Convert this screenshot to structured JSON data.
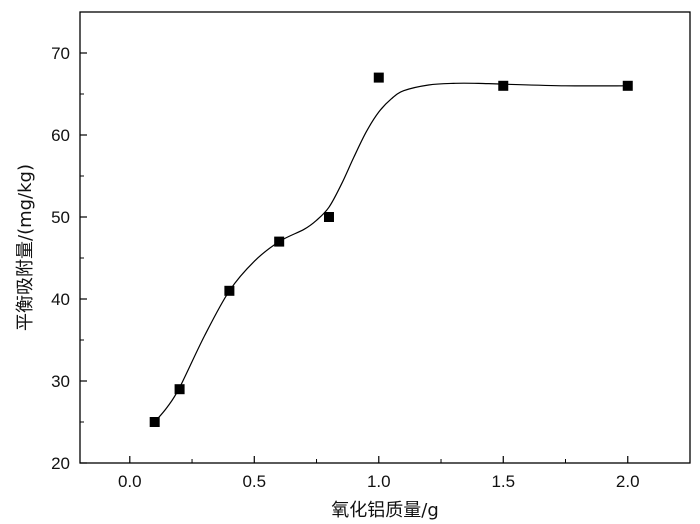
{
  "chart_data": {
    "type": "scatter",
    "xlabel": "氧化铝质量/g",
    "ylabel": "平衡吸附量/(mg/kg)",
    "xlim": [
      -0.2,
      2.25
    ],
    "ylim": [
      20,
      75
    ],
    "x_ticks": [
      0.0,
      0.5,
      1.0,
      1.5,
      2.0
    ],
    "x_tick_labels": [
      "0.0",
      "0.5",
      "1.0",
      "1.5",
      "2.0"
    ],
    "x_minor_ticks": [
      -0.25,
      0.25,
      0.75,
      1.25,
      1.75,
      2.25
    ],
    "y_ticks": [
      20,
      30,
      40,
      50,
      60,
      70
    ],
    "y_tick_labels": [
      "20",
      "30",
      "40",
      "50",
      "60",
      "70"
    ],
    "y_minor_ticks": [
      25,
      35,
      45,
      55,
      65
    ],
    "grid": false,
    "marker": "square",
    "marker_color": "#000000",
    "line_color": "#000000",
    "series": [
      {
        "x": [
          0.1,
          0.2,
          0.4,
          0.6,
          0.8,
          1.0,
          1.5,
          2.0
        ],
        "y": [
          25,
          29,
          41,
          47,
          50,
          67,
          66,
          66
        ]
      }
    ],
    "fit_curve": {
      "x": [
        0.1,
        0.15,
        0.2,
        0.3,
        0.4,
        0.5,
        0.6,
        0.7,
        0.75,
        0.8,
        0.85,
        0.9,
        0.95,
        1.0,
        1.05,
        1.1,
        1.2,
        1.3,
        1.4,
        1.5,
        1.75,
        2.0
      ],
      "y": [
        25,
        26.8,
        29.2,
        35.5,
        41,
        44.6,
        47,
        48.5,
        49.6,
        51.2,
        54,
        57.3,
        60.4,
        62.8,
        64.4,
        65.4,
        66.1,
        66.3,
        66.3,
        66.2,
        66.0,
        66.0
      ]
    }
  }
}
